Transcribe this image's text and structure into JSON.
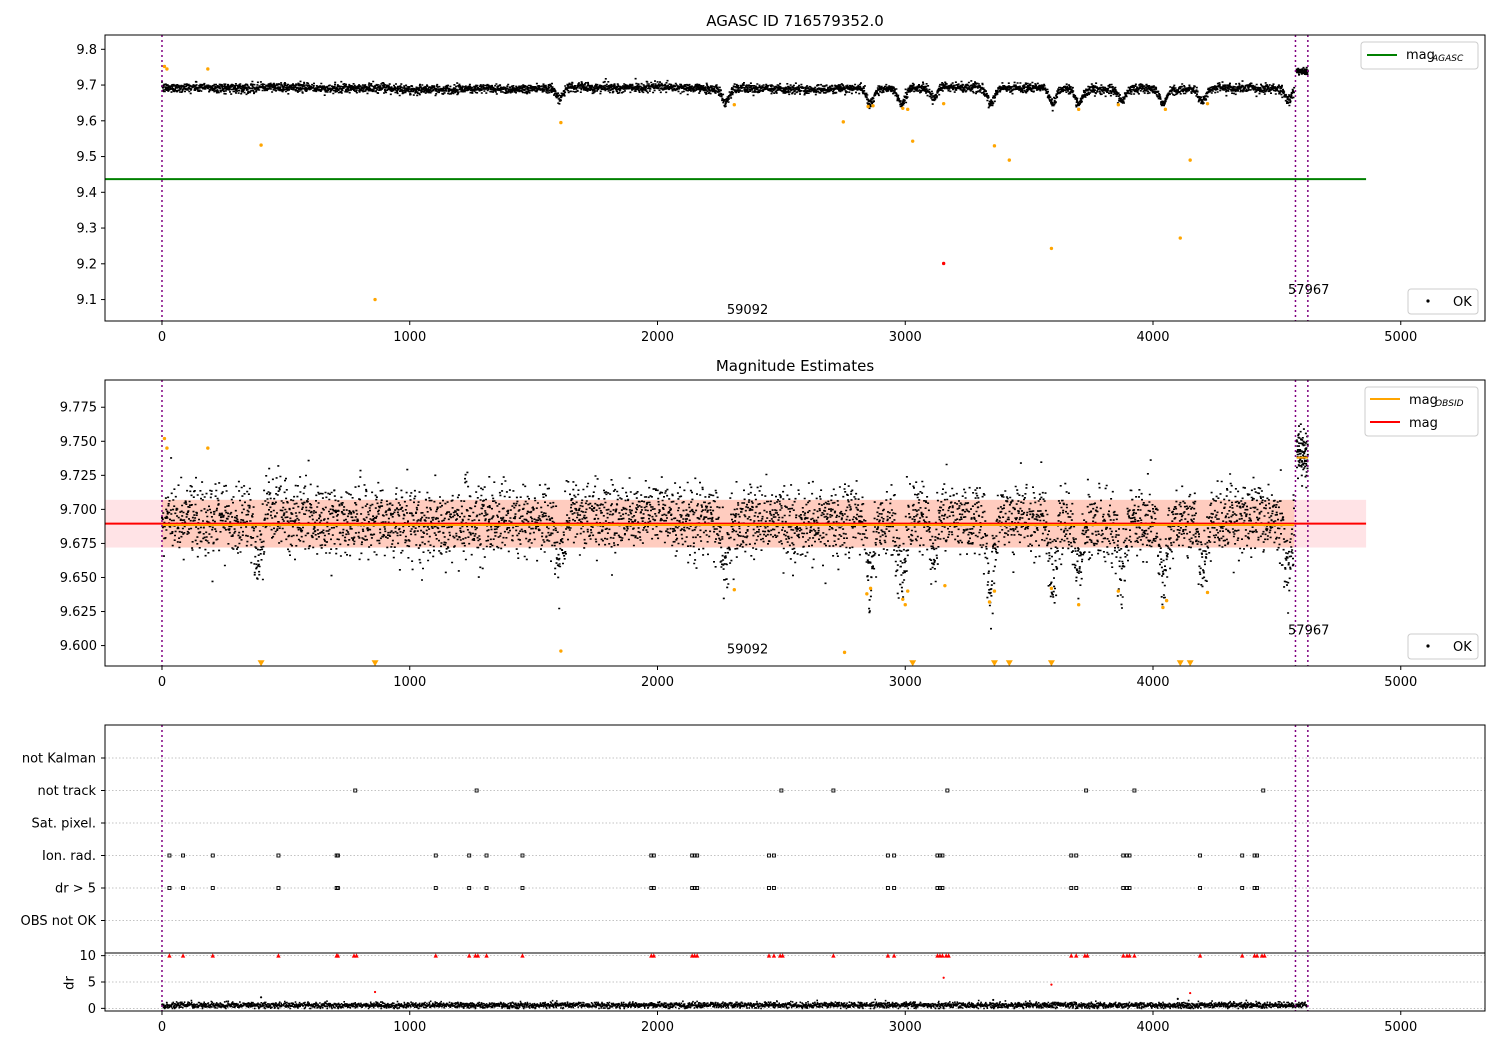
{
  "chart_data": [
    {
      "type": "scatter",
      "title": "AGASC ID 716579352.0",
      "xlim": [
        -230,
        5340
      ],
      "ylim": [
        9.04,
        9.84
      ],
      "xticks": [
        0,
        1000,
        2000,
        3000,
        4000,
        5000
      ],
      "xtick_labels": [
        "0",
        "1000",
        "2000",
        "3000",
        "4000",
        "5000"
      ],
      "yticks": [
        9.1,
        9.2,
        9.3,
        9.4,
        9.5,
        9.6,
        9.7,
        9.8
      ],
      "ytick_labels": [
        "9.1",
        "9.2",
        "9.3",
        "9.4",
        "9.5",
        "9.6",
        "9.7",
        "9.8"
      ],
      "vlines": [
        0,
        4575,
        4625
      ],
      "annotations": [
        {
          "text": "59092",
          "x": 2280,
          "y": 9.06
        },
        {
          "text": "57967",
          "x": 4545,
          "y": 9.115
        }
      ],
      "legend": {
        "placement": "top-right",
        "entries": [
          {
            "label": "mag",
            "sub": "AGASC",
            "color": "#008000",
            "kind": "line"
          }
        ]
      },
      "legend2": {
        "placement": "bottom-right",
        "entries": [
          {
            "label": "OK",
            "color": "#000000",
            "kind": "point"
          }
        ]
      },
      "series": [
        {
          "name": "mag",
          "sub": "AGASC",
          "kind": "hline",
          "y": 9.437,
          "x": [
            -230,
            4860
          ],
          "color": "#008000"
        },
        {
          "name": "OK",
          "kind": "dense",
          "color": "#000000",
          "x_range": [
            0,
            4570
          ],
          "center": 9.693,
          "spread": 0.013,
          "dips": [
            [
              1605,
              0.035
            ],
            [
              2275,
              0.035
            ],
            [
              2860,
              0.04
            ],
            [
              2985,
              0.045
            ],
            [
              3115,
              0.03
            ],
            [
              3345,
              0.045
            ],
            [
              3595,
              0.045
            ],
            [
              3700,
              0.04
            ],
            [
              3875,
              0.035
            ],
            [
              4040,
              0.04
            ],
            [
              4200,
              0.035
            ],
            [
              4545,
              0.035
            ]
          ]
        },
        {
          "name": "OK-late",
          "kind": "dense",
          "color": "#000000",
          "x_range": [
            4580,
            4625
          ],
          "center": 9.738,
          "spread": 0.008,
          "dips": []
        },
        {
          "name": "orange-outliers",
          "kind": "points",
          "color": "#FFA500",
          "points": [
            [
              10,
              9.752
            ],
            [
              20,
              9.745
            ],
            [
              185,
              9.745
            ],
            [
              400,
              9.532
            ],
            [
              860,
              9.1
            ],
            [
              1610,
              9.595
            ],
            [
              2310,
              9.645
            ],
            [
              2750,
              9.597
            ],
            [
              2850,
              9.64
            ],
            [
              2870,
              9.642
            ],
            [
              2990,
              9.635
            ],
            [
              3010,
              9.632
            ],
            [
              3030,
              9.543
            ],
            [
              3155,
              9.648
            ],
            [
              3360,
              9.53
            ],
            [
              3420,
              9.49
            ],
            [
              3590,
              9.243
            ],
            [
              3700,
              9.632
            ],
            [
              3860,
              9.645
            ],
            [
              4050,
              9.632
            ],
            [
              4110,
              9.272
            ],
            [
              4150,
              9.49
            ],
            [
              4220,
              9.648
            ]
          ]
        },
        {
          "name": "red-outliers",
          "kind": "points",
          "color": "#FF0000",
          "points": [
            [
              3155,
              9.201
            ]
          ]
        }
      ]
    },
    {
      "type": "scatter",
      "title": "Magnitude Estimates",
      "xlim": [
        -230,
        5340
      ],
      "ylim": [
        9.585,
        9.795
      ],
      "xticks": [
        0,
        1000,
        2000,
        3000,
        4000,
        5000
      ],
      "xtick_labels": [
        "0",
        "1000",
        "2000",
        "3000",
        "4000",
        "5000"
      ],
      "yticks": [
        9.6,
        9.625,
        9.65,
        9.675,
        9.7,
        9.725,
        9.75,
        9.775
      ],
      "ytick_labels": [
        "9.600",
        "9.625",
        "9.650",
        "9.675",
        "9.700",
        "9.725",
        "9.750",
        "9.775"
      ],
      "vlines": [
        0,
        4575,
        4625
      ],
      "annotations": [
        {
          "text": "59092",
          "x": 2280,
          "y": 9.594
        },
        {
          "text": "57967",
          "x": 4545,
          "y": 9.608
        }
      ],
      "legend": {
        "placement": "top-right",
        "entries": [
          {
            "label": "mag",
            "sub": "OBSID",
            "color": "#FFA500",
            "kind": "line"
          },
          {
            "label": "mag",
            "sub": "",
            "color": "#FF0000",
            "kind": "line"
          }
        ]
      },
      "legend2": {
        "placement": "bottom-right",
        "entries": [
          {
            "label": "OK",
            "color": "#000000",
            "kind": "point"
          }
        ]
      },
      "bands": [
        {
          "x": [
            -230,
            4860
          ],
          "y": [
            9.672,
            9.707
          ],
          "color": "#FFC0C8",
          "opacity": 0.45
        },
        {
          "x": [
            0,
            4570
          ],
          "y": [
            9.672,
            9.707
          ],
          "color": "#FFB090",
          "opacity": 0.45
        }
      ],
      "series": [
        {
          "name": "mag",
          "kind": "hline",
          "y": 9.6895,
          "x": [
            -230,
            4860
          ],
          "color": "#FF0000"
        },
        {
          "name": "mag",
          "sub": "OBSID",
          "kind": "hline",
          "y": 9.6885,
          "x": [
            0,
            4570
          ],
          "color": "#FFA500"
        },
        {
          "name": "mag-OBSID-late",
          "kind": "hline",
          "y": 9.738,
          "x": [
            4580,
            4625
          ],
          "color": "#FFA500"
        },
        {
          "name": "OK",
          "kind": "dense",
          "color": "#000000",
          "x_range": [
            0,
            4570
          ],
          "center": 9.693,
          "spread": 0.013,
          "dips": [
            [
              385,
              0.03
            ],
            [
              1605,
              0.035
            ],
            [
              2275,
              0.035
            ],
            [
              2860,
              0.04
            ],
            [
              2985,
              0.045
            ],
            [
              3115,
              0.03
            ],
            [
              3345,
              0.045
            ],
            [
              3595,
              0.045
            ],
            [
              3700,
              0.04
            ],
            [
              3875,
              0.035
            ],
            [
              4040,
              0.04
            ],
            [
              4200,
              0.035
            ],
            [
              4545,
              0.035
            ]
          ]
        },
        {
          "name": "OK-late",
          "kind": "dense",
          "color": "#000000",
          "x_range": [
            4580,
            4625
          ],
          "center": 9.74,
          "spread": 0.009,
          "dips": []
        },
        {
          "name": "orange-outliers",
          "kind": "points",
          "color": "#FFA500",
          "points": [
            [
              10,
              9.752
            ],
            [
              20,
              9.745
            ],
            [
              185,
              9.745
            ],
            [
              1610,
              9.596
            ],
            [
              2310,
              9.641
            ],
            [
              2755,
              9.595
            ],
            [
              2845,
              9.638
            ],
            [
              2860,
              9.642
            ],
            [
              2990,
              9.634
            ],
            [
              3000,
              9.63
            ],
            [
              3010,
              9.64
            ],
            [
              3160,
              9.644
            ],
            [
              3340,
              9.632
            ],
            [
              3360,
              9.64
            ],
            [
              3590,
              9.642
            ],
            [
              3700,
              9.63
            ],
            [
              3860,
              9.64
            ],
            [
              4040,
              9.628
            ],
            [
              4055,
              9.633
            ],
            [
              4220,
              9.639
            ]
          ]
        },
        {
          "name": "orange-limits",
          "kind": "triangles",
          "color": "#FFA500",
          "points": [
            [
              400,
              9.587
            ],
            [
              860,
              9.587
            ],
            [
              3030,
              9.587
            ],
            [
              3360,
              9.587
            ],
            [
              3420,
              9.587
            ],
            [
              3590,
              9.587
            ],
            [
              4110,
              9.587
            ],
            [
              4150,
              9.587
            ]
          ]
        }
      ]
    },
    {
      "type": "scatter",
      "title": "",
      "xlim": [
        -230,
        5340
      ],
      "xticks": [
        0,
        1000,
        2000,
        3000,
        4000,
        5000
      ],
      "xtick_labels": [
        "0",
        "1000",
        "2000",
        "3000",
        "4000",
        "5000"
      ],
      "vlines": [
        0,
        4575,
        4625
      ],
      "flag_rows": [
        "not Kalman",
        "not track",
        "Sat. pixel.",
        "Ion. rad.",
        "dr > 5",
        "OBS not OK"
      ],
      "flags": {
        "not track": [
          780,
          1270,
          2500,
          2710,
          3170,
          3730,
          3925,
          4445
        ],
        "Ion. rad.": [
          30,
          85,
          205,
          470,
          705,
          710,
          1105,
          1240,
          1310,
          1455,
          1975,
          1985,
          2140,
          2150,
          2160,
          2450,
          2470,
          2930,
          2955,
          3130,
          3140,
          3150,
          3670,
          3690,
          3880,
          3895,
          3905,
          4190,
          4360,
          4410,
          4420
        ],
        "dr > 5": [
          30,
          85,
          205,
          470,
          705,
          710,
          1105,
          1240,
          1310,
          1455,
          1975,
          1985,
          2140,
          2150,
          2160,
          2450,
          2470,
          2930,
          2955,
          3130,
          3140,
          3150,
          3670,
          3690,
          3880,
          3895,
          3905,
          4190,
          4360,
          4410,
          4420
        ]
      },
      "dr": {
        "ylabel": "dr",
        "ylim": [
          -0.5,
          10.5
        ],
        "yticks": [
          0,
          5,
          10
        ],
        "ytick_labels": [
          "0",
          "5",
          "10"
        ],
        "baseline": 0.6,
        "clipped_x": [
          30,
          85,
          205,
          470,
          705,
          710,
          775,
          785,
          1105,
          1240,
          1265,
          1275,
          1310,
          1455,
          1975,
          1985,
          2140,
          2150,
          2160,
          2450,
          2470,
          2495,
          2505,
          2710,
          2930,
          2955,
          3130,
          3140,
          3150,
          3165,
          3175,
          3670,
          3690,
          3725,
          3735,
          3880,
          3895,
          3905,
          3925,
          4190,
          4360,
          4410,
          4420,
          4440,
          4450
        ],
        "red_points": [
          [
            860,
            3.1
          ],
          [
            3155,
            5.8
          ],
          [
            3590,
            4.5
          ],
          [
            4150,
            2.9
          ]
        ],
        "black_points": [
          [
            400,
            2.1
          ],
          [
            3355,
            1.6
          ],
          [
            4100,
            1.8
          ]
        ]
      }
    }
  ]
}
